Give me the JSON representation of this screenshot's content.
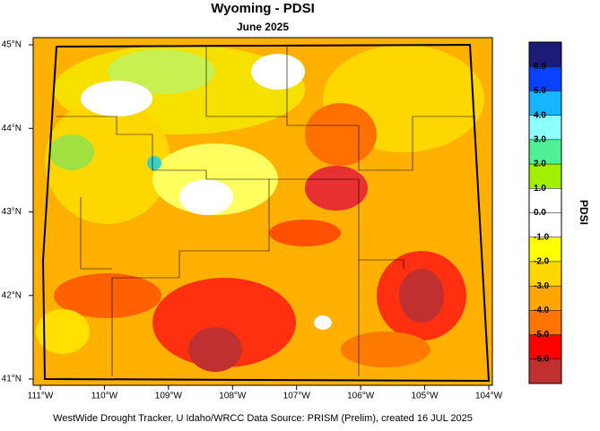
{
  "title": "Wyoming - PDSI",
  "subtitle": "June 2025",
  "x_axis": {
    "ticks": [
      "111°W",
      "110°W",
      "109°W",
      "108°W",
      "107°W",
      "106°W",
      "105°W",
      "104°W"
    ]
  },
  "y_axis": {
    "ticks": [
      "45°N",
      "44°N",
      "43°N",
      "42°N",
      "41°N"
    ]
  },
  "legend": {
    "title": "PDSI",
    "labels": [
      "6.0",
      "5.0",
      "4.0",
      "3.0",
      "2.0",
      "1.0",
      "0.0",
      "-1.0",
      "-2.0",
      "-3.0",
      "-4.0",
      "-5.0",
      "-6.0"
    ]
  },
  "footer": "WestWide Drought Tracker, U Idaho/WRCC Data Source: PRISM (Prelim), created 16 JUL 2025"
}
